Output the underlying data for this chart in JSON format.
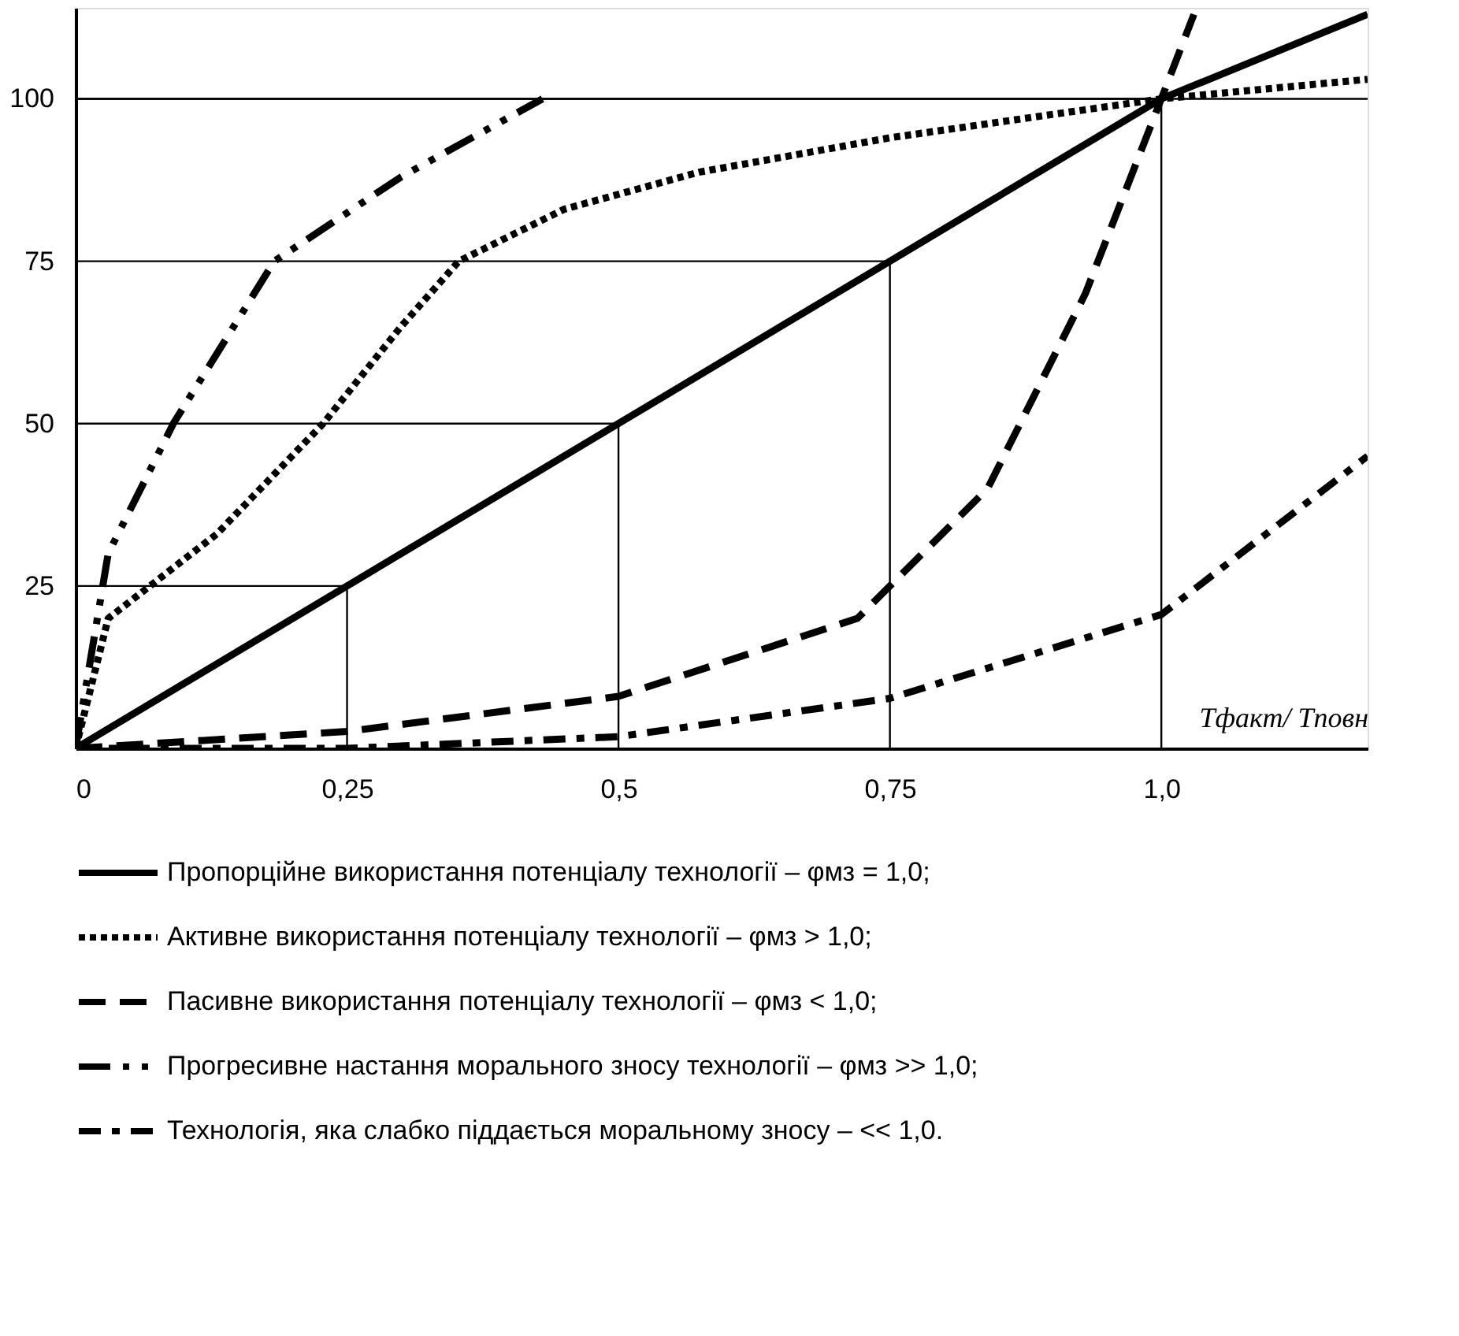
{
  "chart_data": {
    "type": "line",
    "xlabel": "Tфакт/ Tповн",
    "xlim": [
      0,
      1.19
    ],
    "ylim": [
      0,
      114
    ],
    "xticks": [
      {
        "value": 0,
        "label": "0"
      },
      {
        "value": 0.25,
        "label": "0,25"
      },
      {
        "value": 0.5,
        "label": "0,5"
      },
      {
        "value": 0.75,
        "label": "0,75"
      },
      {
        "value": 1,
        "label": "1,0"
      }
    ],
    "yticks": [
      25,
      50,
      75,
      100
    ],
    "grid": false,
    "legend": "bottom",
    "marker": "none",
    "ref_lines": [
      {
        "axis": "y",
        "value": 100,
        "color": "#000000",
        "line_style": "solid"
      }
    ],
    "series": [
      {
        "name": "Пропорційне використання потенціалу технології – φмз = 1,0;",
        "color": "#000000",
        "line_style": "solid",
        "x": [
          0,
          0.25,
          0.5,
          0.75,
          1.0,
          1.19
        ],
        "values": [
          0,
          25,
          50,
          75,
          100,
          113
        ]
      },
      {
        "name": "Активне використання потенціалу технології – φмз > 1,0;",
        "color": "#000000",
        "line_style": "dotted",
        "x": [
          0,
          0.03,
          0.13,
          0.228,
          0.3,
          0.353,
          0.45,
          0.574,
          0.75,
          1.0,
          1.19
        ],
        "values": [
          0,
          20,
          33,
          50,
          65,
          75,
          83,
          88.7,
          94,
          100,
          103
        ]
      },
      {
        "name": "Пасивне використання потенціалу технології – φмз < 1,0;",
        "color": "#000000",
        "line_style": "dashed",
        "x": [
          0,
          0.25,
          0.5,
          0.72,
          0.84,
          0.93,
          1.0,
          1.03
        ],
        "values": [
          0,
          2.6,
          8,
          20,
          40,
          70,
          100,
          113
        ]
      },
      {
        "name": "Прогресивне настання морального зносу технології – φмз >> 1,0;",
        "color": "#000000",
        "line_style": "dashdotdot",
        "x": [
          0,
          0.03,
          0.09,
          0.183,
          0.3,
          0.43
        ],
        "values": [
          0,
          30,
          50,
          75,
          88,
          100
        ]
      },
      {
        "name": "Технологія, яка слабко піддається моральному зносу – << 1,0.",
        "color": "#000000",
        "line_style": "dashdot",
        "x": [
          0,
          0.25,
          0.5,
          0.75,
          1.0,
          1.19
        ],
        "values": [
          0,
          0,
          1.8,
          7.7,
          20.6,
          45
        ]
      },
      {
        "color": "#000000",
        "line_style": "solid",
        "x": [
          0,
          0.25,
          0.25
        ],
        "values": [
          25,
          25,
          0
        ]
      },
      {
        "color": "#000000",
        "line_style": "solid",
        "x": [
          0,
          0.5,
          0.5
        ],
        "values": [
          50,
          50,
          0
        ]
      },
      {
        "color": "#000000",
        "line_style": "solid",
        "x": [
          0,
          0.75,
          0.75
        ],
        "values": [
          75,
          75,
          0
        ]
      },
      {
        "color": "#000000",
        "line_style": "solid",
        "x": [
          0,
          1.0,
          1.0
        ],
        "values": [
          100,
          100,
          0
        ]
      }
    ]
  }
}
